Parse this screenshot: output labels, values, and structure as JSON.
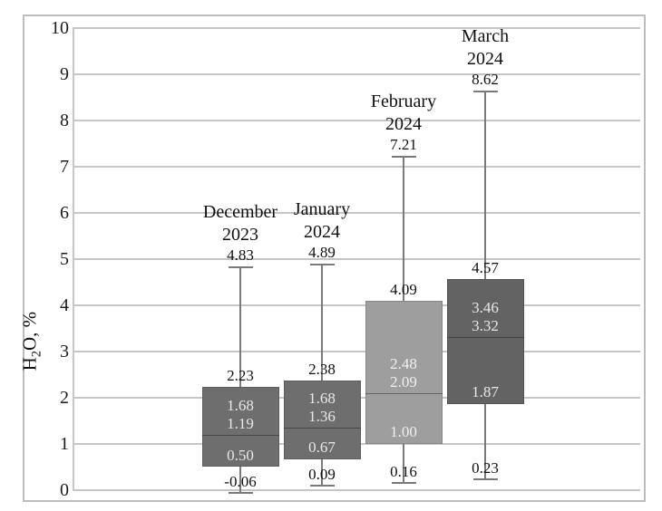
{
  "figure": {
    "y_axis_title": {
      "pre": "H",
      "sub": "2",
      "post": "O, %"
    }
  },
  "chart_data": {
    "type": "box",
    "title": "",
    "xlabel": "",
    "ylabel": "H2O, %",
    "ylim": [
      0,
      10
    ],
    "yticks": [
      10,
      9,
      8,
      7,
      6,
      5,
      4,
      3,
      2,
      1,
      0
    ],
    "grid": "horizontal",
    "legend": "none",
    "categories": [
      "December 2023",
      "January 2024",
      "February 2024",
      "March 2024"
    ],
    "series": [
      {
        "name": "December 2023",
        "title_lines": [
          "December",
          "2023"
        ],
        "whisker_high": 4.83,
        "box_top": 2.23,
        "upper_label": 1.68,
        "median": 1.19,
        "box_bottom": 0.5,
        "whisker_low": -0.06,
        "fill": "#6e6e6e",
        "label_color": "#e8e8e8"
      },
      {
        "name": "January 2024",
        "title_lines": [
          "January",
          "2024"
        ],
        "whisker_high": 4.89,
        "box_top": 2.38,
        "upper_label": 1.68,
        "median": 1.36,
        "box_bottom": 0.67,
        "whisker_low": 0.09,
        "fill": "#6e6e6e",
        "label_color": "#e8e8e8"
      },
      {
        "name": "February 2024",
        "title_lines": [
          "February",
          "2024"
        ],
        "whisker_high": 7.21,
        "box_top": 4.09,
        "upper_label": 2.48,
        "median": 2.09,
        "box_bottom": 1.0,
        "whisker_low": 0.16,
        "fill": "#9e9e9e",
        "label_color": "#f0f0f0"
      },
      {
        "name": "March 2024",
        "title_lines": [
          "March",
          "2024"
        ],
        "whisker_high": 8.62,
        "box_top": 4.57,
        "upper_label": 3.46,
        "median": 3.32,
        "box_bottom": 1.87,
        "whisker_low": 0.23,
        "fill": "#636363",
        "label_color": "#e8e8e8"
      }
    ],
    "colors": {
      "gridline": "#c6c6c6",
      "whisker": "#7a7a7a",
      "figure_border": "#bdbdbd",
      "text": "#111111"
    }
  }
}
